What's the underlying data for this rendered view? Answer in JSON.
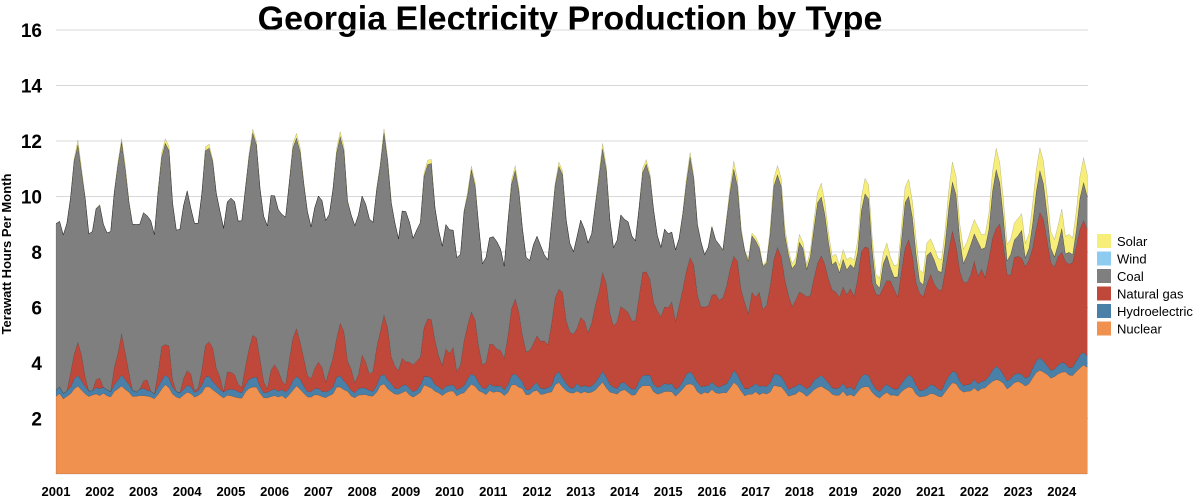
{
  "chart_data": {
    "type": "area",
    "stacked": true,
    "title": "Georgia Electricity Production by Type",
    "xlabel": "",
    "ylabel": "Terawatt Hours Per Month",
    "ylim": [
      0,
      16
    ],
    "yticks": [
      2,
      4,
      6,
      8,
      10,
      12,
      14,
      16
    ],
    "xlim": [
      2001,
      2024.6
    ],
    "xticks": [
      "2001",
      "2002",
      "2003",
      "2004",
      "2005",
      "2006",
      "2007",
      "2008",
      "2009",
      "2010",
      "2011",
      "2012",
      "2013",
      "2014",
      "2015",
      "2016",
      "2017",
      "2018",
      "2019",
      "2020",
      "2021",
      "2022",
      "2023",
      "2024"
    ],
    "grid": true,
    "legend_position": "right",
    "resolution": "monthly",
    "series": [
      {
        "name": "Nuclear",
        "color": "#f0914f",
        "years": [
          2001,
          2006,
          2011,
          2016,
          2021,
          2023,
          2024
        ],
        "level": [
          2.9,
          2.9,
          3.0,
          3.0,
          2.9,
          3.3,
          3.7
        ],
        "swing": 0.25
      },
      {
        "name": "Hydroelectric",
        "color": "#4a7fa8",
        "years": [
          2001,
          2006,
          2011,
          2016,
          2021,
          2024
        ],
        "level": [
          0.25,
          0.25,
          0.25,
          0.3,
          0.3,
          0.35
        ],
        "swing": 0.12
      },
      {
        "name": "Natural gas",
        "color": "#c0483a",
        "years": [
          2001,
          2004,
          2008,
          2011,
          2013,
          2016,
          2019,
          2021,
          2023,
          2024
        ],
        "level": [
          0.2,
          0.5,
          1.0,
          1.5,
          2.5,
          3.3,
          3.7,
          3.9,
          4.5,
          4.0
        ],
        "swing": 0.9
      },
      {
        "name": "Coal",
        "color": "#7f7f7f",
        "years": [
          2001,
          2005,
          2008,
          2010,
          2012,
          2014,
          2016,
          2018,
          2020,
          2022,
          2024
        ],
        "level": [
          6.2,
          6.4,
          5.9,
          4.6,
          3.5,
          3.4,
          2.4,
          1.7,
          0.8,
          1.3,
          0.7
        ],
        "swing": 0.8
      },
      {
        "name": "Wind",
        "color": "#8ecbf0",
        "years": [
          2001,
          2024
        ],
        "level": [
          0.0,
          0.0
        ],
        "swing": 0.0
      },
      {
        "name": "Solar",
        "color": "#f7ee7a",
        "years": [
          2001,
          2015,
          2016,
          2018,
          2020,
          2022,
          2024
        ],
        "level": [
          0.0,
          0.0,
          0.05,
          0.25,
          0.45,
          0.55,
          0.7
        ],
        "swing": 0.15
      }
    ],
    "legend": [
      "Solar",
      "Wind",
      "Coal",
      "Natural gas",
      "Hydroelectric",
      "Nuclear"
    ]
  }
}
